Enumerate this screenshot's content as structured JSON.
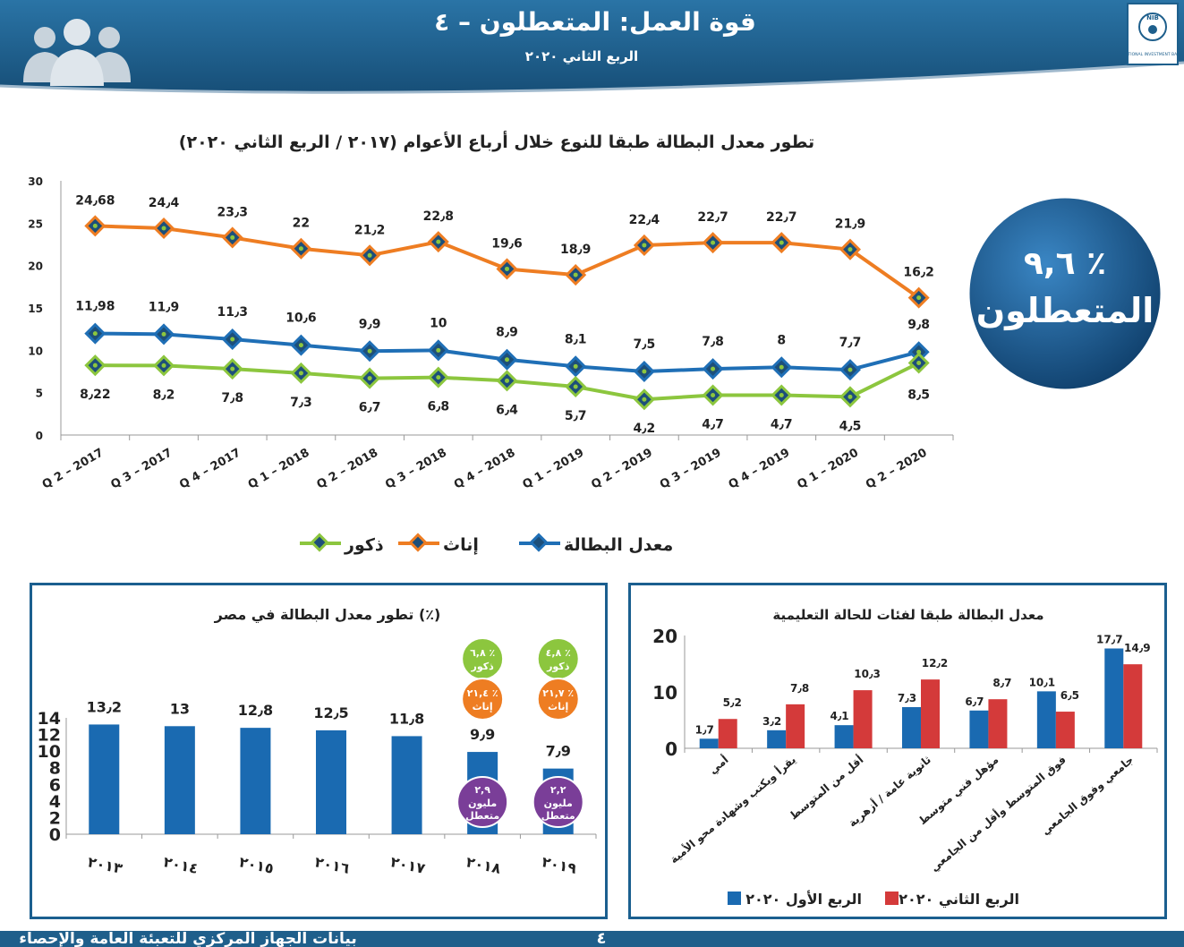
{
  "header": {
    "title": "قوة العمل: المتعطلون – ٤",
    "subtitle": "الربع الثاني ٢٠٢٠",
    "logo_text": "NIB",
    "logo_subtext": "NATIONAL INVESTMENT BANK",
    "people_icon": "people-group-icon"
  },
  "badge": {
    "value": "٩,٦ ٪",
    "label": "المتعطلون"
  },
  "colors": {
    "header_blue": "#1e5f8c",
    "total_line": "#1f6fb6",
    "female_line": "#ee7d22",
    "male_line": "#8cc63e",
    "marker_fill": "#1b7a3a",
    "bar_blue": "#1a6ab1",
    "bar_red": "#d43a3a",
    "badge_green": "#8cc63e",
    "badge_orange": "#ee7d22",
    "badge_purple": "#7a3e98"
  },
  "chart_data": [
    {
      "type": "line",
      "title": "تطور معدل البطالة طبقا للنوع خلال أرباع الأعوام (٢٠١٧ / الربع الثاني ٢٠٢٠)",
      "categories": [
        "Q 2 – 2017",
        "Q 3 – 2017",
        "Q 4 – 2017",
        "Q 1 – 2018",
        "Q 2 – 2018",
        "Q 3 – 2018",
        "Q 4 – 2018",
        "Q 1 – 2019",
        "Q 2 – 2019",
        "Q 3 – 2019",
        "Q 4 – 2019",
        "Q 1 – 2020",
        "Q 2 – 2020"
      ],
      "ylim": [
        0,
        30
      ],
      "yticks": [
        "0",
        "5",
        "10",
        "15",
        "20",
        "25",
        "30"
      ],
      "legend_position": "bottom",
      "series": [
        {
          "name": "إناث",
          "color_key": "female_line",
          "values": [
            24.68,
            24.4,
            23.3,
            22,
            21.2,
            22.8,
            19.6,
            18.9,
            22.4,
            22.7,
            22.7,
            21.9,
            16.2
          ],
          "labels": [
            "24٫68",
            "24٫4",
            "23٫3",
            "22",
            "21٫2",
            "22٫8",
            "19٫6",
            "18٫9",
            "22٫4",
            "22٫7",
            "22٫7",
            "21٫9",
            "16٫2"
          ]
        },
        {
          "name": "معدل البطالة",
          "color_key": "total_line",
          "values": [
            11.98,
            11.9,
            11.3,
            10.6,
            9.9,
            10,
            8.9,
            8.1,
            7.5,
            7.8,
            8,
            7.7,
            9.8
          ],
          "labels": [
            "11٫98",
            "11٫9",
            "11٫3",
            "10٫6",
            "9٫9",
            "10",
            "8٫9",
            "8٫1",
            "7٫5",
            "7٫8",
            "8",
            "7٫7",
            "9٫8"
          ]
        },
        {
          "name": "ذكور",
          "color_key": "male_line",
          "values": [
            8.22,
            8.2,
            7.8,
            7.3,
            6.7,
            6.8,
            6.4,
            5.7,
            4.2,
            4.7,
            4.7,
            4.5,
            8.5
          ],
          "labels": [
            "8٫22",
            "8٫2",
            "7٫8",
            "7٫3",
            "6٫7",
            "6٫8",
            "6٫4",
            "5٫7",
            "4٫2",
            "4٫7",
            "4٫7",
            "4٫5",
            "8٫5"
          ]
        }
      ]
    },
    {
      "type": "bar",
      "title": "تطور معدل البطالة في مصر (٪)",
      "categories": [
        "٢٠١٣",
        "٢٠١٤",
        "٢٠١٥",
        "٢٠١٦",
        "٢٠١٧",
        "٢٠١٨",
        "٢٠١٩"
      ],
      "values": [
        13.2,
        13,
        12.8,
        12.5,
        11.8,
        9.9,
        7.9
      ],
      "labels": [
        "13٫2",
        "13",
        "12٫8",
        "12٫5",
        "11٫8",
        "9٫9",
        "7٫9"
      ],
      "ylim": [
        0,
        14
      ],
      "yticks": [
        "0",
        "2",
        "4",
        "6",
        "8",
        "10",
        "12",
        "14"
      ],
      "bubbles": [
        {
          "year_index": 5,
          "male": "٦,٨ ٪",
          "male_label": "ذكور",
          "female": "٢١,٤ ٪",
          "female_label": "إناث",
          "count": "٢,٩",
          "count_label": "مليون متعطل"
        },
        {
          "year_index": 6,
          "male": "٤,٨ ٪",
          "male_label": "ذكور",
          "female": "٢١,٧ ٪",
          "female_label": "إناث",
          "count": "٢,٢",
          "count_label": "مليون متعطل"
        }
      ]
    },
    {
      "type": "bar",
      "title": "معدل البطالة طبقا لفئات للحالة التعليمية",
      "categories": [
        "أمي",
        "يقرأ ويكتب وشهادة محو الأمية",
        "أقل من المتوسط",
        "ثانوية عامة / أزهرية",
        "مؤهل فني متوسط",
        "فوق المتوسط وأقل من الجامعي",
        "جامعي وفوق الجامعي"
      ],
      "ylim": [
        0,
        20
      ],
      "yticks": [
        "0",
        "10",
        "20"
      ],
      "legend_position": "bottom",
      "series": [
        {
          "name": "الربع الأول ٢٠٢٠",
          "color_key": "bar_blue",
          "values": [
            1.7,
            3.2,
            4.1,
            7.3,
            6.7,
            10.1,
            17.7
          ],
          "labels": [
            "1٫7",
            "3٫2",
            "4٫1",
            "7٫3",
            "6٫7",
            "10٫1",
            "17٫7"
          ]
        },
        {
          "name": "الربع الثاني ٢٠٢٠",
          "color_key": "bar_red",
          "values": [
            5.2,
            7.8,
            10.3,
            12.2,
            8.7,
            6.5,
            14.9
          ],
          "labels": [
            "5٫2",
            "7٫8",
            "10٫3",
            "12٫2",
            "8٫7",
            "6٫5",
            "14٫9"
          ]
        }
      ]
    }
  ],
  "footer": {
    "source": "بيانات الجهاز المركزي للتعبئة العامة والإحصاء",
    "page_number": "٤"
  }
}
